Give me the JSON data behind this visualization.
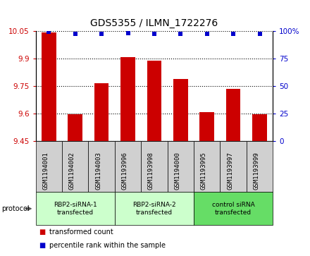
{
  "title": "GDS5355 / ILMN_1722276",
  "samples": [
    "GSM1194001",
    "GSM1194002",
    "GSM1194003",
    "GSM1193996",
    "GSM1193998",
    "GSM1194000",
    "GSM1193995",
    "GSM1193997",
    "GSM1193999"
  ],
  "bar_values": [
    10.04,
    9.595,
    9.765,
    9.905,
    9.885,
    9.785,
    9.605,
    9.735,
    9.595
  ],
  "percentile_values": [
    99,
    97,
    97,
    98,
    97,
    97,
    97,
    97,
    97
  ],
  "ymin": 9.45,
  "ymax": 10.05,
  "yticks": [
    9.45,
    9.6,
    9.75,
    9.9,
    10.05
  ],
  "ytick_labels": [
    "9.45",
    "9.6",
    "9.75",
    "9.9",
    "10.05"
  ],
  "y2min": 0,
  "y2max": 100,
  "y2ticks": [
    0,
    25,
    50,
    75,
    100
  ],
  "y2tick_labels": [
    "0",
    "25",
    "50",
    "75",
    "100%"
  ],
  "bar_color": "#cc0000",
  "dot_color": "#0000cc",
  "left_axis_color": "#cc0000",
  "right_axis_color": "#0000cc",
  "grid_color": "#000000",
  "groups": [
    {
      "label": "RBP2-siRNA-1\ntransfected",
      "start": 0,
      "end": 3,
      "color": "#ccffcc"
    },
    {
      "label": "RBP2-siRNA-2\ntransfected",
      "start": 3,
      "end": 6,
      "color": "#ccffcc"
    },
    {
      "label": "control siRNA\ntransfected",
      "start": 6,
      "end": 9,
      "color": "#66dd66"
    }
  ],
  "protocol_label": "protocol",
  "legend_items": [
    {
      "color": "#cc0000",
      "label": "transformed count"
    },
    {
      "color": "#0000cc",
      "label": "percentile rank within the sample"
    }
  ],
  "bar_width": 0.55,
  "sample_box_color": "#d0d0d0",
  "title_fontsize": 10,
  "tick_fontsize": 7.5,
  "label_fontsize": 7
}
